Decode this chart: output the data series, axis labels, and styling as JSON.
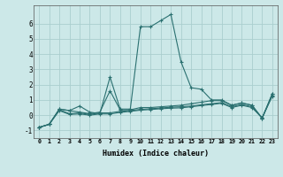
{
  "xlabel": "Humidex (Indice chaleur)",
  "x_values": [
    0,
    1,
    2,
    3,
    4,
    5,
    6,
    7,
    8,
    9,
    10,
    11,
    12,
    13,
    14,
    15,
    16,
    17,
    18,
    19,
    20,
    21,
    22,
    23
  ],
  "lines": [
    [
      -0.8,
      -0.6,
      0.4,
      0.3,
      0.6,
      0.2,
      0.1,
      2.5,
      0.4,
      0.4,
      5.8,
      5.8,
      6.2,
      6.6,
      3.5,
      1.8,
      1.7,
      1.0,
      1.0,
      0.65,
      0.8,
      0.65,
      -0.2,
      1.4
    ],
    [
      -0.8,
      -0.6,
      0.4,
      0.3,
      0.2,
      0.1,
      0.2,
      1.6,
      0.35,
      0.35,
      0.5,
      0.5,
      0.55,
      0.6,
      0.65,
      0.75,
      0.85,
      0.95,
      0.95,
      0.65,
      0.8,
      0.65,
      -0.2,
      1.4
    ],
    [
      -0.8,
      -0.6,
      0.35,
      0.1,
      0.15,
      0.05,
      0.15,
      0.15,
      0.25,
      0.3,
      0.38,
      0.42,
      0.47,
      0.52,
      0.55,
      0.6,
      0.68,
      0.75,
      0.82,
      0.55,
      0.7,
      0.55,
      -0.18,
      1.3
    ],
    [
      -0.8,
      -0.6,
      0.3,
      0.05,
      0.08,
      0.0,
      0.08,
      0.08,
      0.18,
      0.25,
      0.33,
      0.37,
      0.42,
      0.46,
      0.48,
      0.55,
      0.63,
      0.7,
      0.78,
      0.5,
      0.65,
      0.5,
      -0.18,
      1.25
    ]
  ],
  "line_color": "#2a7070",
  "bg_color": "#cce8e8",
  "grid_color": "#aacece",
  "ylim": [
    -1.5,
    7.2
  ],
  "xlim": [
    -0.5,
    23.5
  ],
  "yticks": [
    -1,
    0,
    1,
    2,
    3,
    4,
    5,
    6
  ],
  "xtick_labels": [
    "0",
    "1",
    "2",
    "3",
    "4",
    "5",
    "6",
    "7",
    "8",
    "9",
    "10",
    "11",
    "12",
    "13",
    "14",
    "15",
    "16",
    "17",
    "18",
    "19",
    "20",
    "21",
    "22",
    "23"
  ]
}
